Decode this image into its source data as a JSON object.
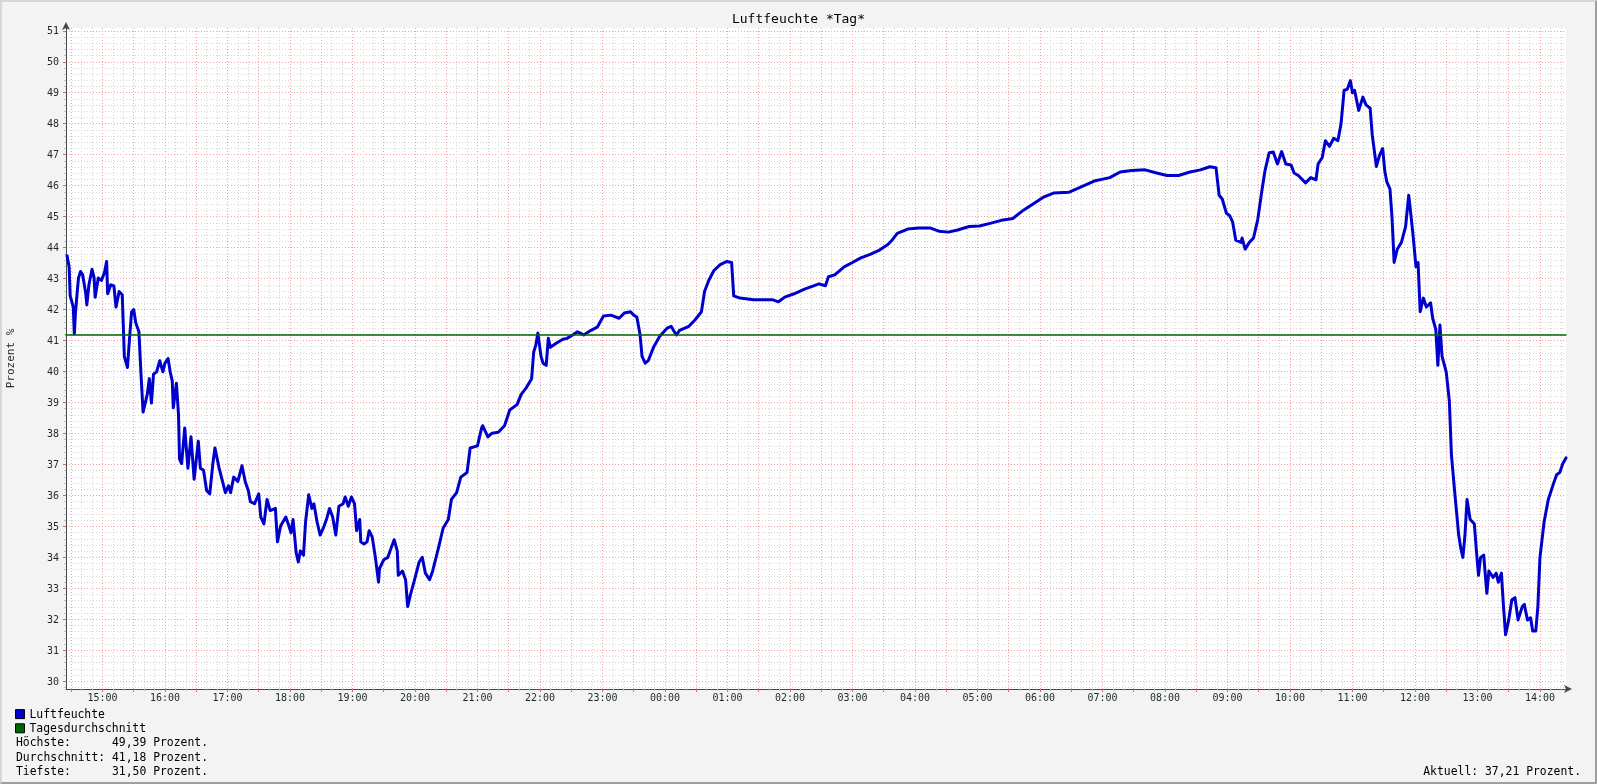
{
  "chart_data": {
    "type": "line",
    "title": "Luftfeuchte *Tag*",
    "ylabel": "Prozent %",
    "xlim": [
      "2000-01-01T14:25",
      "2000-01-02T14:25"
    ],
    "ylim": [
      29.75,
      51.09
    ],
    "xticks": [
      {
        "value": "2000-01-01T14:30",
        "label": null
      },
      {
        "value": "2000-01-01T15:00",
        "label": "15:00"
      },
      {
        "value": "2000-01-01T15:30",
        "label": null
      },
      {
        "value": "2000-01-01T16:00",
        "label": "16:00"
      },
      {
        "value": "2000-01-01T16:30",
        "label": null
      },
      {
        "value": "2000-01-01T17:00",
        "label": "17:00"
      },
      {
        "value": "2000-01-01T17:30",
        "label": null
      },
      {
        "value": "2000-01-01T18:00",
        "label": "18:00"
      },
      {
        "value": "2000-01-01T18:30",
        "label": null
      },
      {
        "value": "2000-01-01T19:00",
        "label": "19:00"
      },
      {
        "value": "2000-01-01T19:30",
        "label": null
      },
      {
        "value": "2000-01-01T20:00",
        "label": "20:00"
      },
      {
        "value": "2000-01-01T20:30",
        "label": null
      },
      {
        "value": "2000-01-01T21:00",
        "label": "21:00"
      },
      {
        "value": "2000-01-01T21:30",
        "label": null
      },
      {
        "value": "2000-01-01T22:00",
        "label": "22:00"
      },
      {
        "value": "2000-01-01T22:30",
        "label": null
      },
      {
        "value": "2000-01-01T23:00",
        "label": "23:00"
      },
      {
        "value": "2000-01-01T23:30",
        "label": null
      },
      {
        "value": "2000-01-02T00:00",
        "label": "00:00"
      },
      {
        "value": "2000-01-02T00:30",
        "label": null
      },
      {
        "value": "2000-01-02T01:00",
        "label": "01:00"
      },
      {
        "value": "2000-01-02T01:30",
        "label": null
      },
      {
        "value": "2000-01-02T02:00",
        "label": "02:00"
      },
      {
        "value": "2000-01-02T02:30",
        "label": null
      },
      {
        "value": "2000-01-02T03:00",
        "label": "03:00"
      },
      {
        "value": "2000-01-02T03:30",
        "label": null
      },
      {
        "value": "2000-01-02T04:00",
        "label": "04:00"
      },
      {
        "value": "2000-01-02T04:30",
        "label": null
      },
      {
        "value": "2000-01-02T05:00",
        "label": "05:00"
      },
      {
        "value": "2000-01-02T05:30",
        "label": null
      },
      {
        "value": "2000-01-02T06:00",
        "label": "06:00"
      },
      {
        "value": "2000-01-02T06:30",
        "label": null
      },
      {
        "value": "2000-01-02T07:00",
        "label": "07:00"
      },
      {
        "value": "2000-01-02T07:30",
        "label": null
      },
      {
        "value": "2000-01-02T08:00",
        "label": "08:00"
      },
      {
        "value": "2000-01-02T08:30",
        "label": null
      },
      {
        "value": "2000-01-02T09:00",
        "label": "09:00"
      },
      {
        "value": "2000-01-02T09:30",
        "label": null
      },
      {
        "value": "2000-01-02T10:00",
        "label": "10:00"
      },
      {
        "value": "2000-01-02T10:30",
        "label": null
      },
      {
        "value": "2000-01-02T11:00",
        "label": "11:00"
      },
      {
        "value": "2000-01-02T11:30",
        "label": null
      },
      {
        "value": "2000-01-02T12:00",
        "label": "12:00"
      },
      {
        "value": "2000-01-02T12:30",
        "label": null
      },
      {
        "value": "2000-01-02T13:00",
        "label": "13:00"
      },
      {
        "value": "2000-01-02T13:30",
        "label": null
      },
      {
        "value": "2000-01-02T14:00",
        "label": "14:00"
      }
    ],
    "yticks": [
      30,
      31,
      32,
      33,
      34,
      35,
      36,
      37,
      38,
      39,
      40,
      41,
      42,
      43,
      44,
      45,
      46,
      47,
      48,
      49,
      50,
      51
    ],
    "grid": true,
    "legend": "bottom left",
    "series": [
      {
        "name": "Luftfeuchte",
        "color": "#0000cc",
        "x": [
          "2000-01-01T14:26",
          "2000-01-01T14:28",
          "2000-01-01T14:29",
          "2000-01-01T14:32",
          "2000-01-01T14:33",
          "2000-01-01T14:34",
          "2000-01-01T14:36",
          "2000-01-01T14:37",
          "2000-01-01T14:39",
          "2000-01-01T14:41",
          "2000-01-01T14:44",
          "2000-01-01T14:45",
          "2000-01-01T14:47",
          "2000-01-01T14:50",
          "2000-01-01T14:52",
          "2000-01-01T14:53",
          "2000-01-01T14:56",
          "2000-01-01T14:59",
          "2000-01-01T15:02",
          "2000-01-01T15:04",
          "2000-01-01T15:05",
          "2000-01-01T15:08",
          "2000-01-01T15:11",
          "2000-01-01T15:13",
          "2000-01-01T15:16",
          "2000-01-01T15:19",
          "2000-01-01T15:20",
          "2000-01-01T15:21",
          "2000-01-01T15:24",
          "2000-01-01T15:26",
          "2000-01-01T15:28",
          "2000-01-01T15:30",
          "2000-01-01T15:32",
          "2000-01-01T15:35",
          "2000-01-01T15:37",
          "2000-01-01T15:39",
          "2000-01-01T15:43",
          "2000-01-01T15:45",
          "2000-01-01T15:47",
          "2000-01-01T15:49",
          "2000-01-01T15:52",
          "2000-01-01T15:55",
          "2000-01-01T15:58",
          "2000-01-01T16:00",
          "2000-01-01T16:03",
          "2000-01-01T16:05",
          "2000-01-01T16:07",
          "2000-01-01T16:08",
          "2000-01-01T16:11",
          "2000-01-01T16:13",
          "2000-01-01T16:14",
          "2000-01-01T16:16",
          "2000-01-01T16:19",
          "2000-01-01T16:22",
          "2000-01-01T16:25",
          "2000-01-01T16:28",
          "2000-01-01T16:32",
          "2000-01-01T16:34",
          "2000-01-01T16:37",
          "2000-01-01T16:40",
          "2000-01-01T16:43",
          "2000-01-01T16:46",
          "2000-01-01T16:48",
          "2000-01-01T16:52",
          "2000-01-01T16:58",
          "2000-01-01T17:01",
          "2000-01-01T17:03",
          "2000-01-01T17:06",
          "2000-01-01T17:10",
          "2000-01-01T17:14",
          "2000-01-01T17:17",
          "2000-01-01T17:20",
          "2000-01-01T17:22",
          "2000-01-01T17:26",
          "2000-01-01T17:30",
          "2000-01-01T17:32",
          "2000-01-01T17:35",
          "2000-01-01T17:38",
          "2000-01-01T17:41",
          "2000-01-01T17:46",
          "2000-01-01T17:48",
          "2000-01-01T17:51",
          "2000-01-01T17:56",
          "2000-01-01T17:59",
          "2000-01-01T18:01",
          "2000-01-01T18:03",
          "2000-01-01T18:06",
          "2000-01-01T18:08",
          "2000-01-01T18:10",
          "2000-01-01T18:13",
          "2000-01-01T18:15",
          "2000-01-01T18:18",
          "2000-01-01T18:21",
          "2000-01-01T18:23",
          "2000-01-01T18:26",
          "2000-01-01T18:29",
          "2000-01-01T18:32",
          "2000-01-01T18:35",
          "2000-01-01T18:38",
          "2000-01-01T18:41",
          "2000-01-01T18:44",
          "2000-01-01T18:47",
          "2000-01-01T18:51",
          "2000-01-01T18:53",
          "2000-01-01T18:56",
          "2000-01-01T18:59",
          "2000-01-01T19:02",
          "2000-01-01T19:04",
          "2000-01-01T19:07",
          "2000-01-01T19:08",
          "2000-01-01T19:11",
          "2000-01-01T19:14",
          "2000-01-01T19:16",
          "2000-01-01T19:19",
          "2000-01-01T19:22",
          "2000-01-01T19:25",
          "2000-01-01T19:26",
          "2000-01-01T19:30",
          "2000-01-01T19:34",
          "2000-01-01T19:37",
          "2000-01-01T19:40",
          "2000-01-01T19:43",
          "2000-01-01T19:44",
          "2000-01-01T19:48",
          "2000-01-01T19:51",
          "2000-01-01T19:53",
          "2000-01-01T19:56",
          "2000-01-01T19:59",
          "2000-01-01T20:04",
          "2000-01-01T20:07",
          "2000-01-01T20:10",
          "2000-01-01T20:14",
          "2000-01-01T20:17",
          "2000-01-01T20:23",
          "2000-01-01T20:27",
          "2000-01-01T20:32",
          "2000-01-01T20:35",
          "2000-01-01T20:40",
          "2000-01-01T20:44",
          "2000-01-01T20:50",
          "2000-01-01T20:53",
          "2000-01-01T21:00",
          "2000-01-01T21:04",
          "2000-01-01T21:05",
          "2000-01-01T21:10",
          "2000-01-01T21:14",
          "2000-01-01T21:20",
          "2000-01-01T21:26",
          "2000-01-01T21:31",
          "2000-01-01T21:38",
          "2000-01-01T21:42",
          "2000-01-01T21:47",
          "2000-01-01T21:52",
          "2000-01-01T21:54",
          "2000-01-01T21:56",
          "2000-01-01T21:58",
          "2000-01-01T22:01",
          "2000-01-01T22:03",
          "2000-01-01T22:06",
          "2000-01-01T22:08",
          "2000-01-01T22:10",
          "2000-01-01T22:16",
          "2000-01-01T22:22",
          "2000-01-01T22:26",
          "2000-01-01T22:31",
          "2000-01-01T22:36",
          "2000-01-01T22:42",
          "2000-01-01T22:49",
          "2000-01-01T22:55",
          "2000-01-01T23:01",
          "2000-01-01T23:08",
          "2000-01-01T23:16",
          "2000-01-01T23:21",
          "2000-01-01T23:27",
          "2000-01-01T23:30",
          "2000-01-01T23:33",
          "2000-01-01T23:36",
          "2000-01-01T23:38",
          "2000-01-01T23:41",
          "2000-01-01T23:44",
          "2000-01-01T23:49",
          "2000-01-01T23:55",
          "2000-01-02T00:02",
          "2000-01-02T00:06",
          "2000-01-02T00:09",
          "2000-01-02T00:11",
          "2000-01-02T00:14",
          "2000-01-02T00:23",
          "2000-01-02T00:29",
          "2000-01-02T00:35",
          "2000-01-02T00:38",
          "2000-01-02T00:42",
          "2000-01-02T00:47",
          "2000-01-02T00:53",
          "2000-01-02T00:59",
          "2000-01-02T01:04",
          "2000-01-02T01:06",
          "2000-01-02T01:12",
          "2000-01-02T01:25",
          "2000-01-02T01:43",
          "2000-01-02T01:49",
          "2000-01-02T01:55",
          "2000-01-02T02:04",
          "2000-01-02T02:14",
          "2000-01-02T02:28",
          "2000-01-02T02:34",
          "2000-01-02T02:37",
          "2000-01-02T02:43",
          "2000-01-02T02:52",
          "2000-01-02T03:00",
          "2000-01-02T03:08",
          "2000-01-02T03:17",
          "2000-01-02T03:26",
          "2000-01-02T03:34",
          "2000-01-02T03:38",
          "2000-01-02T03:43",
          "2000-01-02T03:53",
          "2000-01-02T04:04",
          "2000-01-02T04:15",
          "2000-01-02T04:23",
          "2000-01-02T04:32",
          "2000-01-02T04:41",
          "2000-01-02T04:52",
          "2000-01-02T05:02",
          "2000-01-02T05:13",
          "2000-01-02T05:23",
          "2000-01-02T05:34",
          "2000-01-02T05:43",
          "2000-01-02T05:53",
          "2000-01-02T06:04",
          "2000-01-02T06:13",
          "2000-01-02T06:28",
          "2000-01-02T06:38",
          "2000-01-02T06:52",
          "2000-01-02T07:07",
          "2000-01-02T07:17",
          "2000-01-02T07:28",
          "2000-01-02T07:41",
          "2000-01-02T07:52",
          "2000-01-02T08:02",
          "2000-01-02T08:13",
          "2000-01-02T08:24",
          "2000-01-02T08:34",
          "2000-01-02T08:43",
          "2000-01-02T08:49",
          "2000-01-02T08:52",
          "2000-01-02T08:55",
          "2000-01-02T08:59",
          "2000-01-02T09:02",
          "2000-01-02T09:05",
          "2000-01-02T09:08",
          "2000-01-02T09:13",
          "2000-01-02T09:14",
          "2000-01-02T09:17",
          "2000-01-02T09:21",
          "2000-01-02T09:25",
          "2000-01-02T09:29",
          "2000-01-02T09:33",
          "2000-01-02T09:36",
          "2000-01-02T09:40",
          "2000-01-02T09:44",
          "2000-01-02T09:48",
          "2000-01-02T09:52",
          "2000-01-02T09:56",
          "2000-01-02T10:01",
          "2000-01-02T10:04",
          "2000-01-02T10:08",
          "2000-01-02T10:15",
          "2000-01-02T10:20",
          "2000-01-02T10:25",
          "2000-01-02T10:27",
          "2000-01-02T10:31",
          "2000-01-02T10:34",
          "2000-01-02T10:38",
          "2000-01-02T10:42",
          "2000-01-02T10:46",
          "2000-01-02T10:49",
          "2000-01-02T10:52",
          "2000-01-02T10:55",
          "2000-01-02T10:58",
          "2000-01-02T11:00",
          "2000-01-02T11:02",
          "2000-01-02T11:06",
          "2000-01-02T11:10",
          "2000-01-02T11:13",
          "2000-01-02T11:17",
          "2000-01-02T11:19",
          "2000-01-02T11:23",
          "2000-01-02T11:26",
          "2000-01-02T11:29",
          "2000-01-02T11:31",
          "2000-01-02T11:33",
          "2000-01-02T11:36",
          "2000-01-02T11:38",
          "2000-01-02T11:40",
          "2000-01-02T11:43",
          "2000-01-02T11:47",
          "2000-01-02T11:51",
          "2000-01-02T11:54",
          "2000-01-02T11:55",
          "2000-01-02T11:58",
          "2000-01-02T12:01",
          "2000-01-02T12:03",
          "2000-01-02T12:05",
          "2000-01-02T12:08",
          "2000-01-02T12:11",
          "2000-01-02T12:15",
          "2000-01-02T12:17",
          "2000-01-02T12:20",
          "2000-01-02T12:22",
          "2000-01-02T12:24",
          "2000-01-02T12:26",
          "2000-01-02T12:30",
          "2000-01-02T12:33",
          "2000-01-02T12:35",
          "2000-01-02T12:38",
          "2000-01-02T12:42",
          "2000-01-02T12:44",
          "2000-01-02T12:46",
          "2000-01-02T12:48",
          "2000-01-02T12:50",
          "2000-01-02T12:53",
          "2000-01-02T12:57",
          "2000-01-02T12:59",
          "2000-01-02T13:01",
          "2000-01-02T13:03",
          "2000-01-02T13:06",
          "2000-01-02T13:09",
          "2000-01-02T13:11",
          "2000-01-02T13:15",
          "2000-01-02T13:18",
          "2000-01-02T13:20",
          "2000-01-02T13:23",
          "2000-01-02T13:25",
          "2000-01-02T13:27",
          "2000-01-02T13:30",
          "2000-01-02T13:33",
          "2000-01-02T13:36",
          "2000-01-02T13:39",
          "2000-01-02T13:43",
          "2000-01-02T13:45",
          "2000-01-02T13:48",
          "2000-01-02T13:51",
          "2000-01-02T13:53",
          "2000-01-02T13:56",
          "2000-01-02T13:58",
          "2000-01-02T14:00",
          "2000-01-02T14:04",
          "2000-01-02T14:08",
          "2000-01-02T14:13",
          "2000-01-02T14:16",
          "2000-01-02T14:19",
          "2000-01-02T14:22",
          "2000-01-02T14:25"
        ],
        "values": [
          43.74,
          43.38,
          42.44,
          42.08,
          41.21,
          41.86,
          42.65,
          43.02,
          43.23,
          43.12,
          42.51,
          42.15,
          42.8,
          43.3,
          43.02,
          42.4,
          43.02,
          42.94,
          43.2,
          43.55,
          42.51,
          42.8,
          42.76,
          42.08,
          42.58,
          42.48,
          41.5,
          40.49,
          40.13,
          41.07,
          41.93,
          42.0,
          41.57,
          41.28,
          39.91,
          38.69,
          39.26,
          39.77,
          38.98,
          39.91,
          39.99,
          40.35,
          39.99,
          40.27,
          40.42,
          39.99,
          39.7,
          38.83,
          39.62,
          38.61,
          37.17,
          37.03,
          38.18,
          36.88,
          37.89,
          36.52,
          37.75,
          36.88,
          36.81,
          36.16,
          36.05,
          37.03,
          37.53,
          36.88,
          36.09,
          36.31,
          36.09,
          36.59,
          36.45,
          36.96,
          36.45,
          36.16,
          35.8,
          35.73,
          36.05,
          35.3,
          35.08,
          35.87,
          35.51,
          35.58,
          34.5,
          35.01,
          35.3,
          35.01,
          34.79,
          35.22,
          34.14,
          33.85,
          34.21,
          34.07,
          35.15,
          36.02,
          35.58,
          35.73,
          35.15,
          34.72,
          34.94,
          35.22,
          35.58,
          35.3,
          34.72,
          35.65,
          35.73,
          35.95,
          35.65,
          35.95,
          35.73,
          34.86,
          35.22,
          34.5,
          34.43,
          34.5,
          34.86,
          34.65,
          34.0,
          33.2,
          33.64,
          33.92,
          34.0,
          34.29,
          34.57,
          34.21,
          33.42,
          33.56,
          33.28,
          32.41,
          32.84,
          33.2,
          33.85,
          34.0,
          33.49,
          33.28,
          33.56,
          34.36,
          34.94,
          35.22,
          35.87,
          36.09,
          36.59,
          36.74,
          37.53,
          37.6,
          38.18,
          38.25,
          37.89,
          38.01,
          38.04,
          38.25,
          38.76,
          38.93,
          39.26,
          39.48,
          39.77,
          40.63,
          40.85,
          41.24,
          40.49,
          40.27,
          40.2,
          41.07,
          40.78,
          40.92,
          41.04,
          41.07,
          41.17,
          41.28,
          41.18,
          41.33,
          41.43,
          41.79,
          41.82,
          41.72,
          41.89,
          41.93,
          41.82,
          41.76,
          41.21,
          40.49,
          40.27,
          40.35,
          40.78,
          41.14,
          41.4,
          41.46,
          41.28,
          41.18,
          41.33,
          41.46,
          41.67,
          41.93,
          42.58,
          42.94,
          43.26,
          43.45,
          43.55,
          43.52,
          42.44,
          42.37,
          42.32,
          42.32,
          42.25,
          42.4,
          42.51,
          42.66,
          42.83,
          42.77,
          43.06,
          43.12,
          43.38,
          43.52,
          43.67,
          43.78,
          43.92,
          44.1,
          44.24,
          44.46,
          44.6,
          44.63,
          44.63,
          44.53,
          44.5,
          44.57,
          44.68,
          44.7,
          44.79,
          44.88,
          44.94,
          45.18,
          45.4,
          45.64,
          45.76,
          45.79,
          45.94,
          46.15,
          46.26,
          46.44,
          46.49,
          46.51,
          46.41,
          46.33,
          46.33,
          46.44,
          46.51,
          46.61,
          46.58,
          45.69,
          45.57,
          45.11,
          45.04,
          44.82,
          44.24,
          44.17,
          44.31,
          43.95,
          44.17,
          44.31,
          44.89,
          45.83,
          46.48,
          47.06,
          47.09,
          46.7,
          47.1,
          46.7,
          46.67,
          46.41,
          46.33,
          46.09,
          46.26,
          46.19,
          46.7,
          46.91,
          47.45,
          47.27,
          47.53,
          47.45,
          47.99,
          49.08,
          49.11,
          49.39,
          49.0,
          49.08,
          48.43,
          48.86,
          48.61,
          48.5,
          47.63,
          46.62,
          46.98,
          47.2,
          46.48,
          46.12,
          45.9,
          44.96,
          43.52,
          43.95,
          44.17,
          44.68,
          45.69,
          45.4,
          44.46,
          43.38,
          43.52,
          41.93,
          42.37,
          42.08,
          42.22,
          41.72,
          41.36,
          40.2,
          41.5,
          40.49,
          39.99,
          39.05,
          37.32,
          36.16,
          34.72,
          34.29,
          34.0,
          34.72,
          35.87,
          35.22,
          35.08,
          34.21,
          33.42,
          34.0,
          34.07,
          32.84,
          33.56,
          33.35,
          33.49,
          33.2,
          33.49,
          32.41,
          31.5,
          31.98,
          32.63,
          32.7,
          31.98,
          32.41,
          32.48,
          31.98,
          32.05,
          31.62,
          31.62,
          32.41,
          34.0,
          35.15,
          35.87,
          36.38,
          36.67,
          36.74,
          37.03,
          37.21
        ]
      },
      {
        "name": "Tagesdurchschnitt",
        "color": "#006400",
        "x": [
          "2000-01-01T14:25",
          "2000-01-02T14:25"
        ],
        "values": [
          41.18,
          41.18
        ]
      }
    ],
    "annotations": [
      "Höchste:      49,39 Prozent.",
      "Durchschnitt: 41,18 Prozent.",
      "Tiefste:      31,50 Prozent.",
      "Aktuell: 37,21 Prozent."
    ]
  }
}
